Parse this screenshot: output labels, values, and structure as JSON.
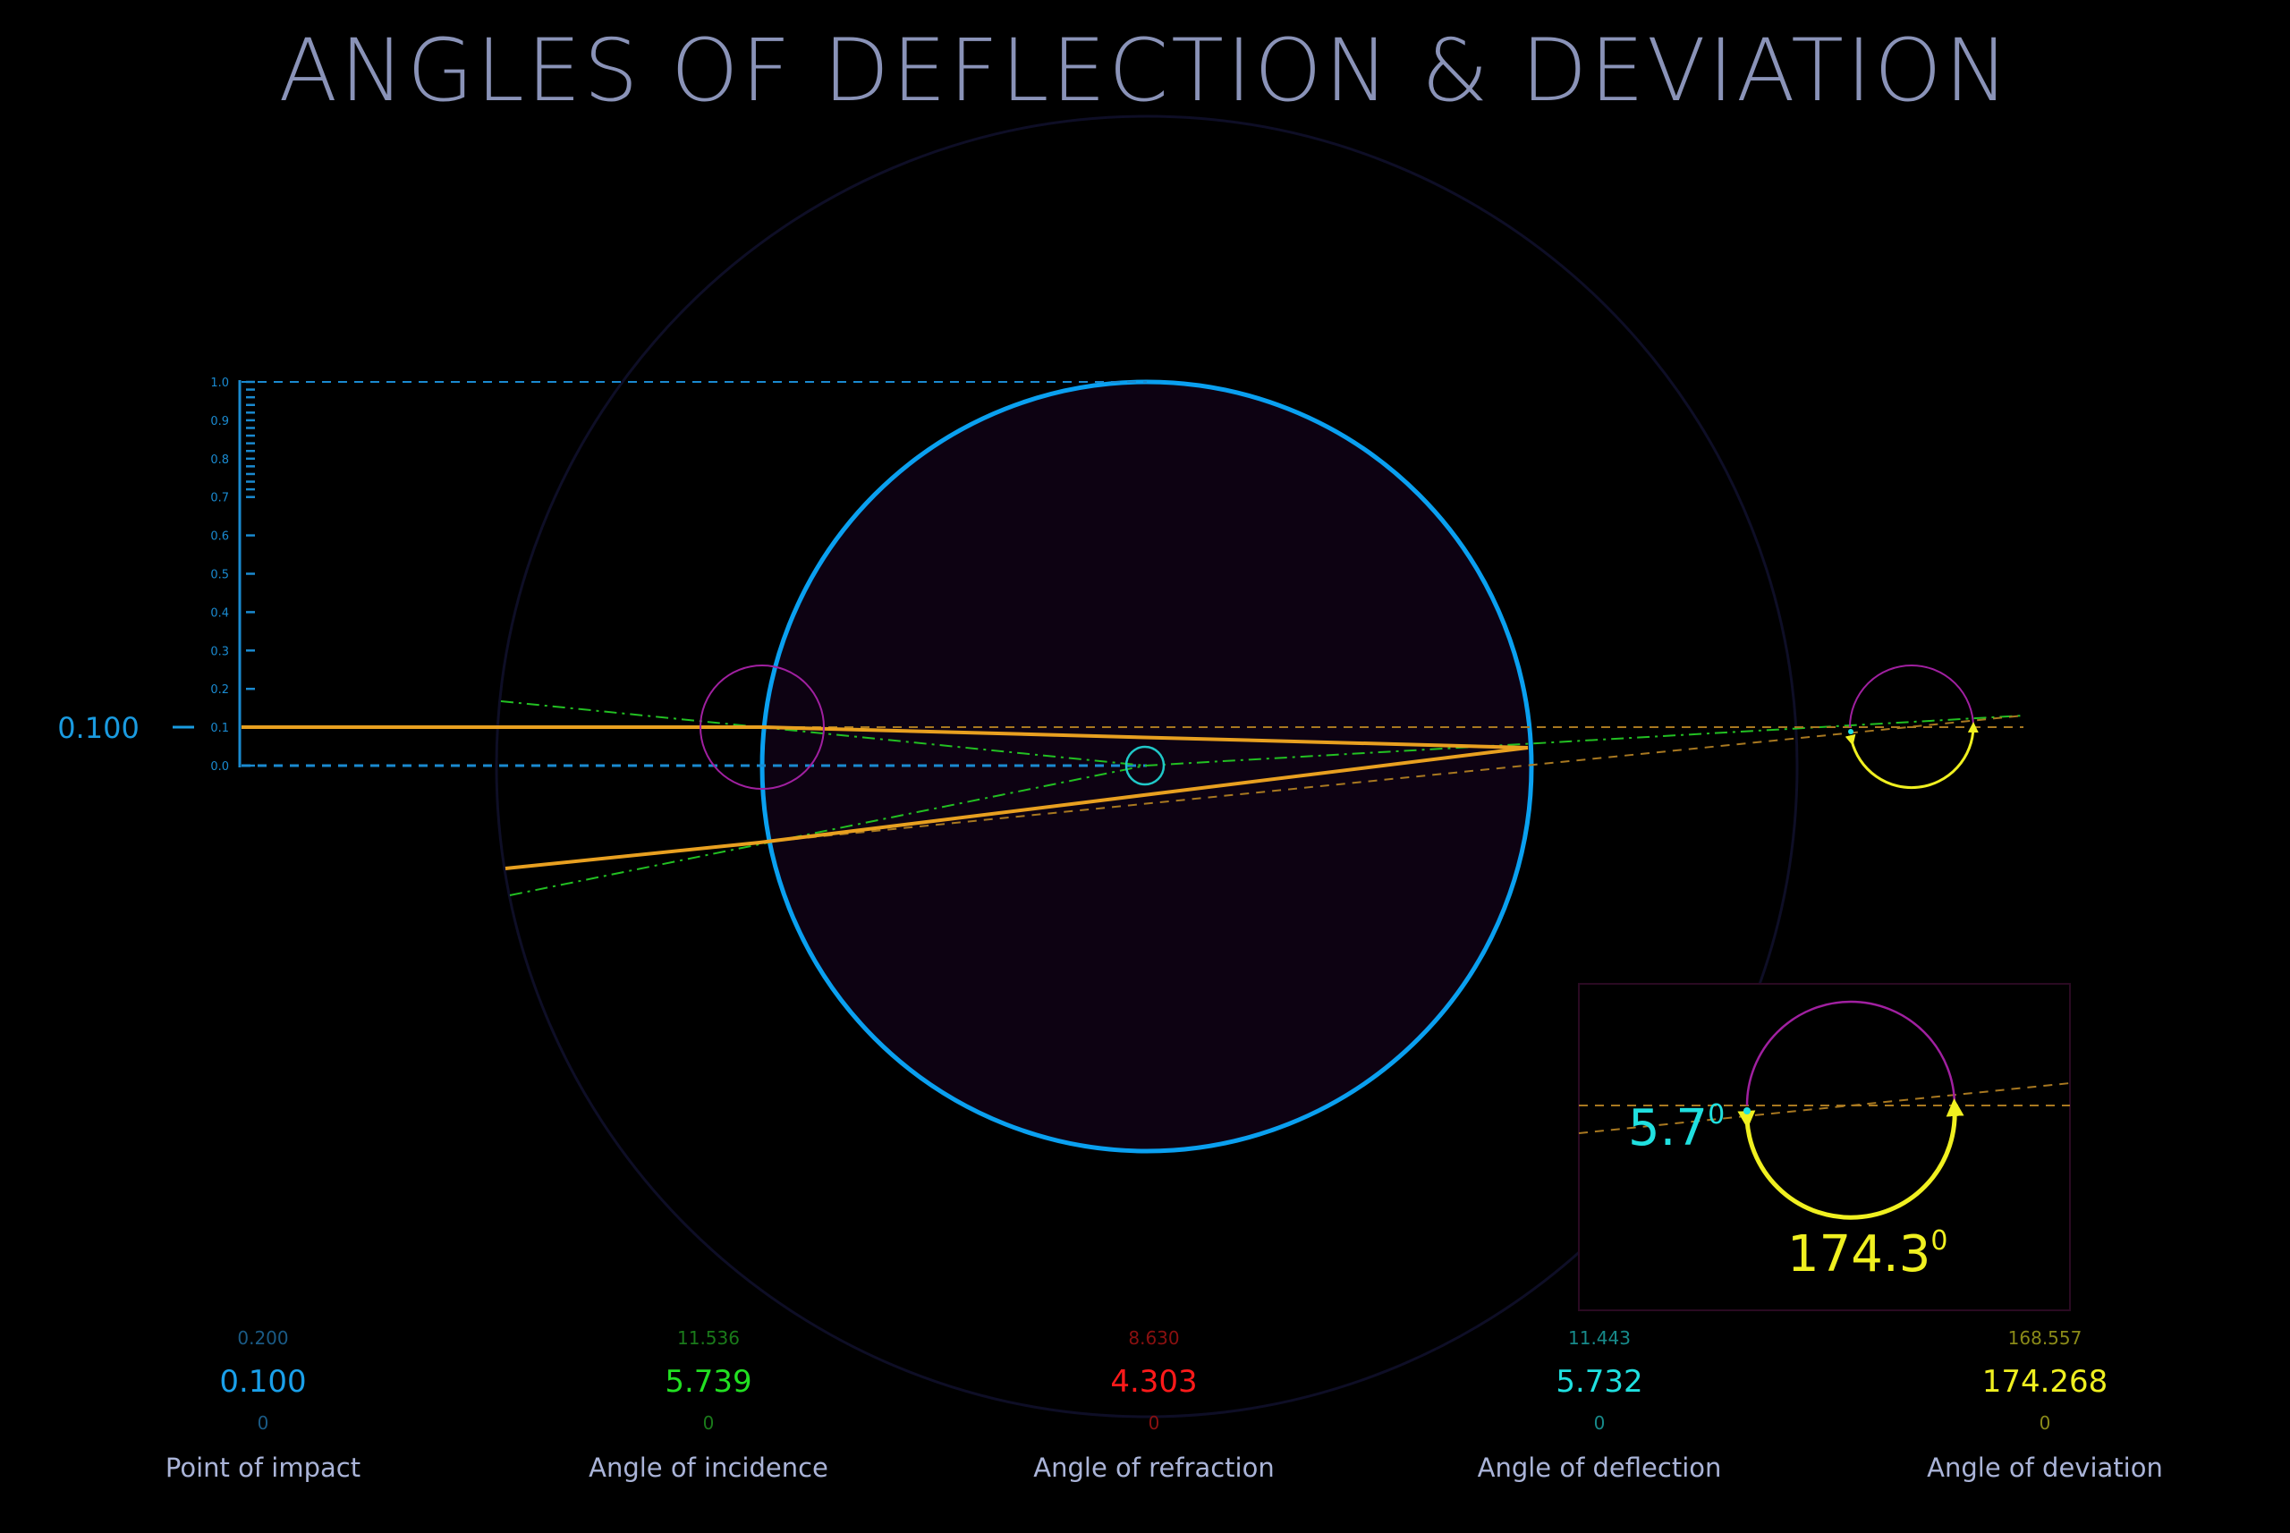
{
  "title": "ANGLES OF DEFLECTION & DEVIATION",
  "scale": {
    "ticks": [
      "0.0",
      "0.1",
      "0.2",
      "0.3",
      "0.4",
      "0.5",
      "0.6",
      "0.7",
      "0.8",
      "0.9",
      "1.0"
    ],
    "current_value": 0.1,
    "current_label": "0.100",
    "color": "#1a9be0"
  },
  "inset": {
    "deflection_label": "5.7",
    "deviation_label": "174.3",
    "degree_mark": "0"
  },
  "controls": [
    {
      "label": "Point of impact",
      "max": "0.200",
      "value": "0.100",
      "min": "0",
      "color": "#1aa0ea",
      "dim_color": "#1a5a85"
    },
    {
      "label": "Angle of  incidence",
      "max": "11.536",
      "value": "5.739",
      "min": "0",
      "color": "#22e022",
      "dim_color": "#1a7a1a"
    },
    {
      "label": "Angle of refraction",
      "max": "8.630",
      "value": "4.303",
      "min": "0",
      "color": "#ff1a1a",
      "dim_color": "#8a1010"
    },
    {
      "label": "Angle of deflection",
      "max": "11.443",
      "value": "5.732",
      "min": "0",
      "color": "#20e0e0",
      "dim_color": "#178a8a"
    },
    {
      "label": "Angle of deviation",
      "max": "168.557",
      "value": "174.268",
      "min": "0",
      "color": "#f0f020",
      "dim_color": "#8a8a18"
    }
  ],
  "colors": {
    "title": "#8a93b8",
    "drop_stroke": "#0aa0f0",
    "drop_fill": "#0d0212",
    "ray": "#e8a020",
    "normal": "#22c022",
    "marker_circle": "#a020a0",
    "center_circle": "#20c8c8",
    "label": "#aab4d8"
  }
}
